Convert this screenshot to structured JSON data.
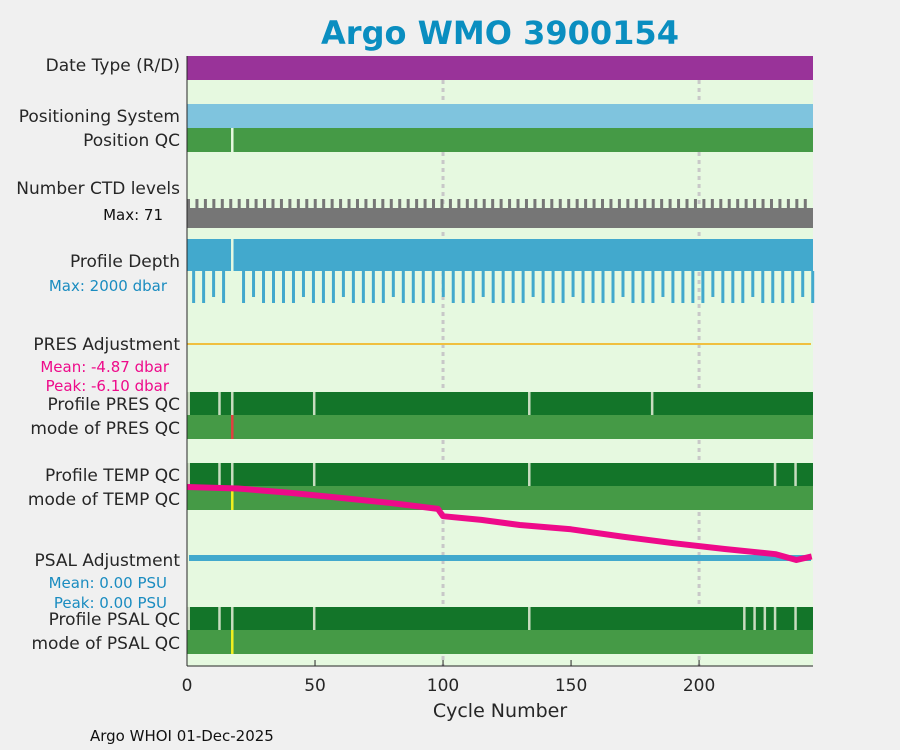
{
  "chart_data": {
    "type": "bar",
    "title": "Argo WMO 3900154",
    "xlabel": "Cycle Number",
    "xlim": [
      0,
      244.5
    ],
    "xticks": [
      "0",
      "50",
      "100",
      "150",
      "200"
    ],
    "xtick_values": [
      0,
      50,
      100,
      150,
      200
    ],
    "grid_x": [
      100,
      200
    ],
    "footer": "Argo WHOI 01-Dec-2025",
    "rows": {
      "date_type": {
        "label": "Date Type (R/D)",
        "color": "#993399"
      },
      "positioning": {
        "label": "Positioning System",
        "color": "#7fc4de"
      },
      "position_qc": {
        "label": "Position QC",
        "color": "#459a46",
        "gaps": [
          17
        ]
      },
      "ctd_levels": {
        "label": "Number CTD levels",
        "max_label": "Max: 71",
        "color": "#767676"
      },
      "profile_depth": {
        "label": "Profile Depth",
        "max_label": "Max: 2000 dbar",
        "color": "#42a9cd",
        "gaps": [
          17
        ]
      },
      "pres_adj": {
        "label": "PRES Adjustment",
        "mean": "Mean: -4.87 dbar",
        "peak": "Peak: -6.10 dbar",
        "color": "#f0c040"
      },
      "pres_qc": {
        "label": "Profile PRES QC",
        "mode_label": "mode of PRES QC",
        "gaps": [
          0,
          12,
          17,
          49,
          133,
          181
        ],
        "flag": {
          "cycle": 17,
          "color": "#e04040"
        }
      },
      "temp_qc": {
        "label": "Profile TEMP QC",
        "mode_label": "mode of TEMP QC",
        "gaps": [
          0,
          12,
          17,
          49,
          133,
          229,
          237
        ],
        "flag": {
          "cycle": 17,
          "color": "#f0f020"
        }
      },
      "psal_adj": {
        "label": "PSAL Adjustment",
        "mean": "Mean: 0.00 PSU",
        "peak": "Peak: 0.00 PSU",
        "color": "#42a9cd"
      },
      "psal_qc": {
        "label": "Profile PSAL QC",
        "mode_label": "mode of PSAL QC",
        "gaps": [
          0,
          12,
          17,
          49,
          133,
          217,
          221,
          225,
          229,
          237
        ],
        "flag": {
          "cycle": 17,
          "color": "#f0f020"
        }
      }
    },
    "trend_series": {
      "name": "pink trend",
      "color": "#ee0a8a",
      "x": [
        0,
        20,
        40,
        60,
        80,
        98,
        100,
        115,
        130,
        150,
        170,
        190,
        210,
        230,
        238,
        244
      ],
      "values": [
        0.0,
        0.02,
        0.08,
        0.15,
        0.22,
        0.3,
        0.4,
        0.45,
        0.52,
        0.58,
        0.68,
        0.77,
        0.85,
        0.92,
        1.0,
        0.95
      ]
    },
    "colors": {
      "title": "#0a8ec0",
      "plot_bg": "#e6f9e0",
      "qc_good_profile": "#137529",
      "qc_good_mode": "#459a46",
      "gap": "#c8dcc0",
      "grid": "#c8c8c8",
      "annot_pink": "#ee0a8a",
      "annot_blue": "#1a8cc0"
    }
  }
}
